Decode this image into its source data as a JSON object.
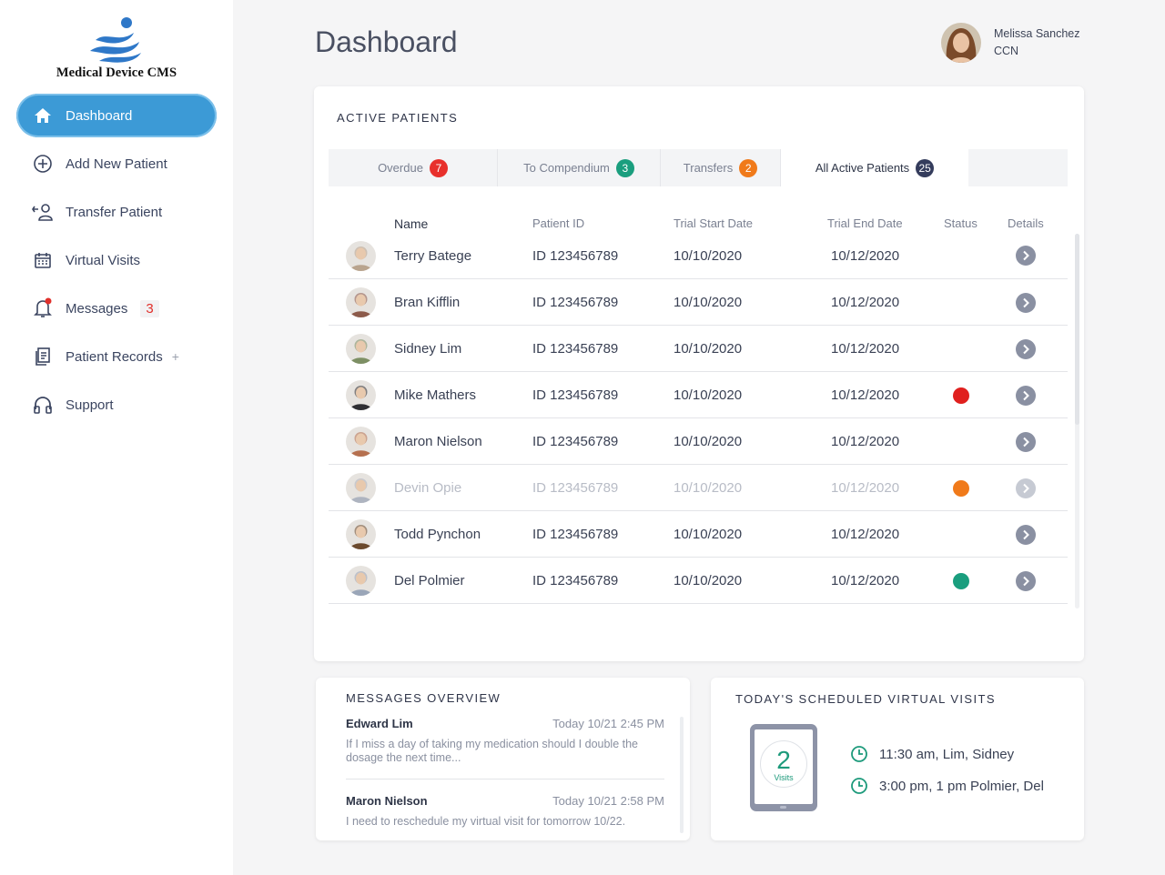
{
  "sidebar": {
    "logo_text": "Medical Device CMS",
    "items": [
      {
        "label": "Dashboard",
        "icon": "home-icon",
        "active": true
      },
      {
        "label": "Add New Patient",
        "icon": "plus-circle-icon"
      },
      {
        "label": "Transfer Patient",
        "icon": "transfer-user-icon"
      },
      {
        "label": "Virtual Visits",
        "icon": "calendar-icon"
      },
      {
        "label": "Messages",
        "icon": "bell-icon",
        "count": "3"
      },
      {
        "label": "Patient Records",
        "icon": "records-icon",
        "suffix": "+"
      },
      {
        "label": "Support",
        "icon": "headphones-icon"
      }
    ]
  },
  "header": {
    "title": "Dashboard",
    "user_name": "Melissa Sanchez",
    "user_role": "CCN"
  },
  "patients": {
    "title": "ACTIVE PATIENTS",
    "tabs": [
      {
        "label": "Overdue",
        "count": "7",
        "color": "#e8302c"
      },
      {
        "label": "To Compendium",
        "count": "3",
        "color": "#1a9e7e"
      },
      {
        "label": "Transfers",
        "count": "2",
        "color": "#f07a1a"
      },
      {
        "label": "All Active Patients",
        "count": "25",
        "color": "#343c5c",
        "active": true
      }
    ],
    "columns": {
      "name": "Name",
      "id": "Patient ID",
      "start": "Trial Start Date",
      "end": "Trial End Date",
      "status": "Status",
      "details": "Details"
    },
    "rows": [
      {
        "name": "Terry Batege",
        "id": "ID 123456789",
        "start": "10/10/2020",
        "end": "10/12/2020",
        "status": "",
        "avatar": "#b9a48e"
      },
      {
        "name": "Bran Kifflin",
        "id": "ID 123456789",
        "start": "10/10/2020",
        "end": "10/12/2020",
        "status": "",
        "avatar": "#8c5a4a"
      },
      {
        "name": "Sidney Lim",
        "id": "ID 123456789",
        "start": "10/10/2020",
        "end": "10/12/2020",
        "status": "",
        "avatar": "#7d8f64"
      },
      {
        "name": "Mike Mathers",
        "id": "ID 123456789",
        "start": "10/10/2020",
        "end": "10/12/2020",
        "status": "#e0201e",
        "avatar": "#2f2f33"
      },
      {
        "name": "Maron Nielson",
        "id": "ID 123456789",
        "start": "10/10/2020",
        "end": "10/12/2020",
        "status": "",
        "avatar": "#b5704f"
      },
      {
        "name": "Devin Opie",
        "id": "ID 123456789",
        "start": "10/10/2020",
        "end": "10/12/2020",
        "status": "#f07a1a",
        "avatar": "#aeb4c0",
        "dim": true
      },
      {
        "name": "Todd Pynchon",
        "id": "ID 123456789",
        "start": "10/10/2020",
        "end": "10/12/2020",
        "status": "",
        "avatar": "#6b4a2e"
      },
      {
        "name": "Del Polmier",
        "id": "ID 123456789",
        "start": "10/10/2020",
        "end": "10/12/2020",
        "status": "#1a9e7e",
        "avatar": "#9aa6b8"
      }
    ]
  },
  "messages": {
    "title": "MESSAGES OVERVIEW",
    "items": [
      {
        "from": "Edward Lim",
        "time": "Today 10/21  2:45 PM",
        "text": "If I miss a day of taking my medication should I double the dosage the next time..."
      },
      {
        "from": "Maron Nielson",
        "time": "Today 10/21  2:58 PM",
        "text": "I need to reschedule my virtual visit for tomorrow 10/22."
      }
    ]
  },
  "visits": {
    "title": "TODAY'S SCHEDULED VIRTUAL VISITS",
    "count": "2",
    "count_label": "Visits",
    "items": [
      {
        "text": "11:30 am, Lim, Sidney"
      },
      {
        "text": "3:00 pm, 1 pm Polmier, Del"
      }
    ],
    "accent": "#1d9a7b"
  }
}
